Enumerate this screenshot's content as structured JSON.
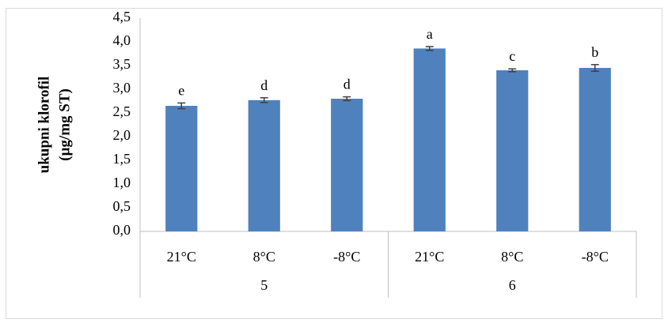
{
  "chart_data": {
    "type": "bar",
    "ylabel_lines": [
      "ukupni klorofil",
      "(µg/mg ST)"
    ],
    "ylim": [
      0,
      4.5
    ],
    "y_ticks": [
      "0,0",
      "0,5",
      "1,0",
      "1,5",
      "2,0",
      "2,5",
      "3,0",
      "3,5",
      "4,0",
      "4,5"
    ],
    "groups": [
      {
        "label": "5",
        "categories": [
          "21°C",
          "8°C",
          "-8°C"
        ]
      },
      {
        "label": "6",
        "categories": [
          "21°C",
          "8°C",
          "-8°C"
        ]
      }
    ],
    "values": [
      2.65,
      2.77,
      2.8,
      3.86,
      3.4,
      3.45
    ],
    "errors": [
      0.06,
      0.05,
      0.04,
      0.04,
      0.03,
      0.07
    ],
    "significance_letters": [
      "e",
      "d",
      "d",
      "a",
      "c",
      "b"
    ],
    "bar_color": "#4f81bd",
    "grid": false,
    "legend": "none"
  }
}
